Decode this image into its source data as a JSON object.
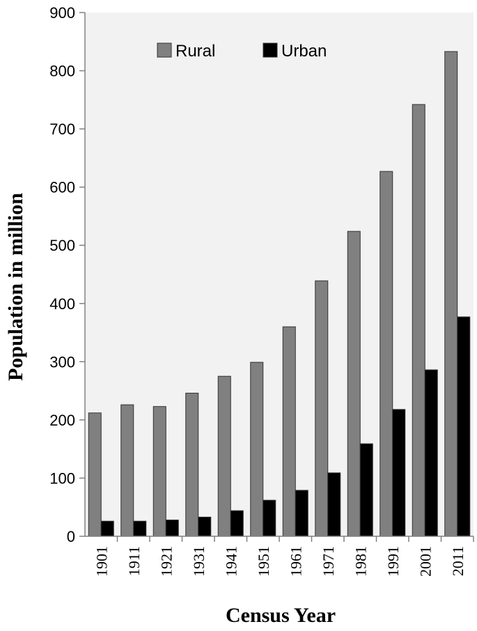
{
  "chart_data": {
    "type": "bar",
    "title": "",
    "xlabel": "Census Year",
    "ylabel": "Population in million",
    "categories": [
      "1901",
      "1911",
      "1921",
      "1931",
      "1941",
      "1951",
      "1961",
      "1971",
      "1981",
      "1991",
      "2001",
      "2011"
    ],
    "series": [
      {
        "name": "Rural",
        "color": "#808080",
        "values": [
          212,
          226,
          223,
          246,
          275,
          299,
          360,
          439,
          524,
          627,
          742,
          833
        ]
      },
      {
        "name": "Urban",
        "color": "#000000",
        "values": [
          26,
          26,
          28,
          33,
          44,
          62,
          79,
          109,
          159,
          218,
          286,
          377
        ]
      }
    ],
    "ylim": [
      0,
      900
    ],
    "yticks": [
      0,
      100,
      200,
      300,
      400,
      500,
      600,
      700,
      800,
      900
    ],
    "legend_position": "top",
    "grid": false,
    "plot_background": "#f2f2f2"
  }
}
